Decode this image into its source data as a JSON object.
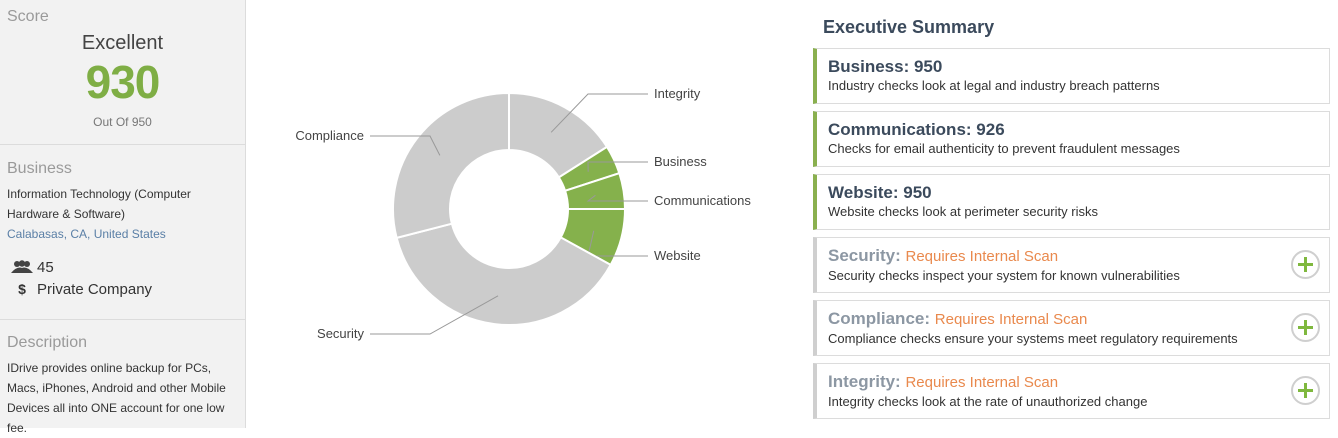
{
  "sidebar": {
    "score": {
      "section_title": "Score",
      "rating": "Excellent",
      "value": "930",
      "out_of": "Out Of 950"
    },
    "business": {
      "section_title": "Business",
      "industry": "Information Technology (Computer Hardware & Software)",
      "city": "Calabasas, CA",
      "separator": ", ",
      "country": "United States",
      "employees": "45",
      "company_type": "Private Company",
      "employees_icon": "people-icon",
      "company_type_icon": "dollar-icon"
    },
    "description": {
      "section_title": "Description",
      "text": "IDrive provides online backup for PCs, Macs, iPhones, Android and other Mobile Devices all into ONE account for one low fee."
    }
  },
  "chart_data": {
    "type": "pie",
    "donut": true,
    "slices": [
      {
        "label": "Integrity",
        "value": 16,
        "color": "#cccccc"
      },
      {
        "label": "Business",
        "value": 4,
        "color": "#85b14c"
      },
      {
        "label": "Communications",
        "value": 5,
        "color": "#85b14c"
      },
      {
        "label": "Website",
        "value": 8,
        "color": "#85b14c"
      },
      {
        "label": "Security",
        "value": 38,
        "color": "#cccccc"
      },
      {
        "label": "Compliance",
        "value": 29,
        "color": "#cccccc"
      }
    ]
  },
  "summary": {
    "title": "Executive Summary",
    "items": [
      {
        "name": "Business: 950",
        "desc": "Industry checks look at legal and industry breach patterns"
      },
      {
        "name": "Communications: 926",
        "desc": "Checks for email authenticity to prevent fraudulent messages"
      },
      {
        "name": "Website: 950",
        "desc": "Website checks look at perimeter security risks"
      },
      {
        "name": "Security:",
        "status": "Requires Internal Scan",
        "desc": "Security checks inspect your system for known vulnerabilities"
      },
      {
        "name": "Compliance:",
        "status": "Requires Internal Scan",
        "desc": "Compliance checks ensure your systems meet regulatory requirements"
      },
      {
        "name": "Integrity:",
        "status": "Requires Internal Scan",
        "desc": "Integrity checks look at the rate of unauthorized change"
      }
    ]
  },
  "colors": {
    "accent_green": "#85b14c",
    "warning_orange": "#e9894d",
    "neutral_slice": "#cccccc"
  }
}
